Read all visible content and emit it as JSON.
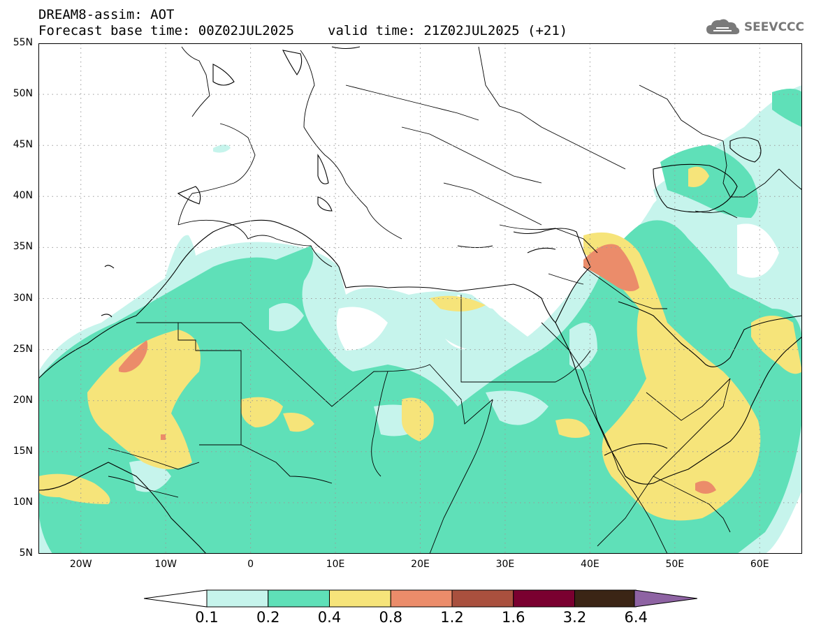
{
  "header": {
    "title": "DREAM8-assim: AOT",
    "base_time": "Forecast base time: 00Z02JUL2025",
    "valid_time": "valid time: 21Z02JUL2025 (+21)"
  },
  "logo": {
    "text": "SEEVCCC",
    "icon": "cloud-icon"
  },
  "map": {
    "projection": "lat-lon",
    "lon_range": [
      -25,
      65
    ],
    "lat_range": [
      5,
      55
    ],
    "grid": "dotted",
    "lat_labels": [
      "55N",
      "50N",
      "45N",
      "40N",
      "35N",
      "30N",
      "25N",
      "20N",
      "15N",
      "10N",
      "5N"
    ],
    "lon_labels": [
      "20W",
      "10W",
      "0",
      "10E",
      "20E",
      "30E",
      "40E",
      "50E",
      "60E"
    ]
  },
  "colorbar": {
    "labels": [
      "0.1",
      "0.2",
      "0.4",
      "0.8",
      "1.2",
      "1.6",
      "3.2",
      "6.4"
    ],
    "colors": [
      "#c6f4ec",
      "#5fe0b8",
      "#f6e47a",
      "#eb8c6a",
      "#a9503e",
      "#7a0030",
      "#3b2515",
      "#8e63a3"
    ],
    "under_color": "#ffffff",
    "over_color": "#8e63a3"
  }
}
